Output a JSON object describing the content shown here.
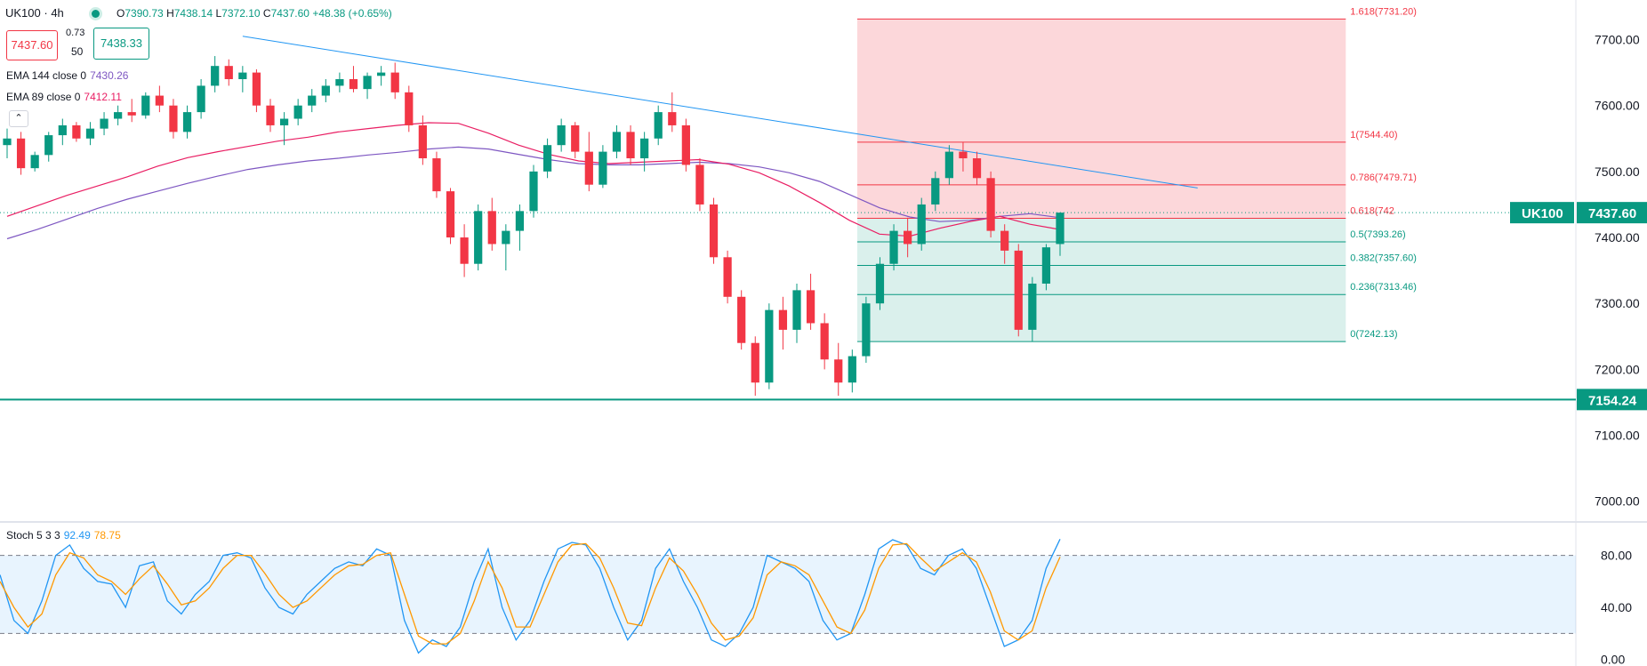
{
  "header": {
    "symbol": "UK100",
    "interval": "4h",
    "open_label": "O",
    "open": "7390.73",
    "high_label": "H",
    "high": "7438.14",
    "low_label": "L",
    "low": "7372.10",
    "close_label": "C",
    "close": "7437.60",
    "change": "+48.38 (+0.65%)"
  },
  "trade": {
    "bid": "7437.60",
    "ask": "7438.33",
    "spread": "0.73",
    "quantity": "50"
  },
  "indicators": {
    "ema144": {
      "label": "EMA 144 close 0",
      "value": "7430.26",
      "color": "#7e57c2"
    },
    "ema89": {
      "label": "EMA 89 close 0",
      "value": "7412.11",
      "color": "#e91e63"
    }
  },
  "stoch": {
    "label": "Stoch 5 3 3",
    "k": "92.49",
    "d": "78.75",
    "k_color": "#2196f3",
    "d_color": "#ff9800"
  },
  "colors": {
    "up": "#089981",
    "down": "#f23645",
    "trend": "#2196f3",
    "support": "#089981"
  },
  "chart_data": [
    {
      "type": "candlestick",
      "symbol": "UK100",
      "ylim": [
        6970,
        7760
      ],
      "yticks": [
        "7000.00",
        "7100.00",
        "7200.00",
        "7300.00",
        "7400.00",
        "7500.00",
        "7600.00",
        "7700.00"
      ],
      "last_price": 7437.6,
      "last_price_label": "UK100",
      "last_price_text": "7437.60",
      "support_level": 7154.24,
      "support_text": "7154.24",
      "trendline": [
        {
          "x": 0.154,
          "y": 7705
        },
        {
          "x": 0.76,
          "y": 7475
        }
      ],
      "fibonacci": [
        {
          "label": "1.618(7731.20)",
          "price": 7731.2
        },
        {
          "label": "1(7544.40)",
          "price": 7544.4
        },
        {
          "label": "0.786(7479.71)",
          "price": 7479.71
        },
        {
          "label": "0.618(742",
          "price": 7428.96
        },
        {
          "label": "0.5(7393.26)",
          "price": 7393.26
        },
        {
          "label": "0.382(7357.60)",
          "price": 7357.6
        },
        {
          "label": "0.236(7313.46)",
          "price": 7313.46
        },
        {
          "label": "0(7242.13)",
          "price": 7242.13
        }
      ],
      "fib_zone_x": [
        0.544,
        0.854
      ],
      "series": [
        {
          "name": "EMA 144 close 0",
          "values": [
            7398,
            7412,
            7428,
            7444,
            7458,
            7470,
            7482,
            7493,
            7503,
            7510,
            7516,
            7520,
            7525,
            7529,
            7534,
            7537,
            7534,
            7526,
            7518,
            7512,
            7510,
            7510,
            7512,
            7514,
            7512,
            7507,
            7498,
            7485,
            7465,
            7445,
            7431,
            7424,
            7426,
            7432,
            7436,
            7430
          ]
        },
        {
          "name": "EMA 89 close 0",
          "values": [
            7432,
            7448,
            7464,
            7478,
            7492,
            7508,
            7521,
            7530,
            7538,
            7546,
            7552,
            7560,
            7565,
            7570,
            7574,
            7573,
            7558,
            7540,
            7526,
            7516,
            7512,
            7514,
            7516,
            7518,
            7511,
            7498,
            7478,
            7453,
            7426,
            7405,
            7402,
            7414,
            7424,
            7432,
            7420,
            7412
          ]
        }
      ],
      "candles_ohlc": [
        [
          7540,
          7565,
          7520,
          7550
        ],
        [
          7550,
          7560,
          7495,
          7505
        ],
        [
          7505,
          7530,
          7500,
          7525
        ],
        [
          7525,
          7560,
          7515,
          7555
        ],
        [
          7555,
          7580,
          7540,
          7570
        ],
        [
          7570,
          7575,
          7545,
          7550
        ],
        [
          7550,
          7575,
          7540,
          7565
        ],
        [
          7565,
          7590,
          7555,
          7580
        ],
        [
          7580,
          7600,
          7570,
          7590
        ],
        [
          7590,
          7610,
          7575,
          7585
        ],
        [
          7585,
          7620,
          7580,
          7615
        ],
        [
          7615,
          7630,
          7590,
          7600
        ],
        [
          7600,
          7610,
          7550,
          7560
        ],
        [
          7560,
          7600,
          7550,
          7590
        ],
        [
          7590,
          7640,
          7580,
          7630
        ],
        [
          7630,
          7675,
          7620,
          7660
        ],
        [
          7660,
          7670,
          7630,
          7640
        ],
        [
          7640,
          7660,
          7620,
          7650
        ],
        [
          7650,
          7655,
          7590,
          7600
        ],
        [
          7600,
          7610,
          7560,
          7570
        ],
        [
          7570,
          7590,
          7540,
          7580
        ],
        [
          7580,
          7610,
          7570,
          7600
        ],
        [
          7600,
          7625,
          7590,
          7615
        ],
        [
          7615,
          7640,
          7605,
          7630
        ],
        [
          7630,
          7650,
          7620,
          7640
        ],
        [
          7640,
          7660,
          7620,
          7625
        ],
        [
          7625,
          7650,
          7610,
          7645
        ],
        [
          7645,
          7660,
          7630,
          7650
        ],
        [
          7650,
          7665,
          7610,
          7620
        ],
        [
          7620,
          7630,
          7560,
          7570
        ],
        [
          7570,
          7585,
          7510,
          7520
        ],
        [
          7520,
          7530,
          7460,
          7470
        ],
        [
          7470,
          7475,
          7390,
          7400
        ],
        [
          7400,
          7420,
          7340,
          7360
        ],
        [
          7360,
          7450,
          7350,
          7440
        ],
        [
          7440,
          7460,
          7380,
          7390
        ],
        [
          7390,
          7420,
          7350,
          7410
        ],
        [
          7410,
          7450,
          7380,
          7440
        ],
        [
          7440,
          7510,
          7430,
          7500
        ],
        [
          7500,
          7550,
          7490,
          7540
        ],
        [
          7540,
          7580,
          7530,
          7570
        ],
        [
          7570,
          7575,
          7520,
          7530
        ],
        [
          7530,
          7560,
          7470,
          7480
        ],
        [
          7480,
          7540,
          7475,
          7530
        ],
        [
          7530,
          7570,
          7520,
          7560
        ],
        [
          7560,
          7570,
          7510,
          7520
        ],
        [
          7520,
          7560,
          7500,
          7550
        ],
        [
          7550,
          7600,
          7540,
          7590
        ],
        [
          7590,
          7620,
          7560,
          7570
        ],
        [
          7570,
          7580,
          7500,
          7510
        ],
        [
          7510,
          7520,
          7440,
          7450
        ],
        [
          7450,
          7460,
          7360,
          7370
        ],
        [
          7370,
          7380,
          7300,
          7310
        ],
        [
          7310,
          7320,
          7230,
          7240
        ],
        [
          7240,
          7250,
          7160,
          7180
        ],
        [
          7180,
          7300,
          7170,
          7290
        ],
        [
          7290,
          7310,
          7230,
          7260
        ],
        [
          7260,
          7330,
          7240,
          7320
        ],
        [
          7320,
          7345,
          7260,
          7270
        ],
        [
          7270,
          7285,
          7200,
          7215
        ],
        [
          7215,
          7240,
          7160,
          7180
        ],
        [
          7180,
          7230,
          7165,
          7220
        ],
        [
          7220,
          7310,
          7210,
          7300
        ],
        [
          7300,
          7370,
          7290,
          7360
        ],
        [
          7360,
          7420,
          7350,
          7410
        ],
        [
          7410,
          7430,
          7370,
          7390
        ],
        [
          7390,
          7460,
          7380,
          7450
        ],
        [
          7450,
          7500,
          7440,
          7490
        ],
        [
          7490,
          7540,
          7480,
          7530
        ],
        [
          7530,
          7545,
          7500,
          7520
        ],
        [
          7520,
          7530,
          7480,
          7490
        ],
        [
          7490,
          7500,
          7400,
          7410
        ],
        [
          7410,
          7420,
          7360,
          7380
        ],
        [
          7380,
          7390,
          7250,
          7260
        ],
        [
          7260,
          7340,
          7242,
          7330
        ],
        [
          7330,
          7390,
          7320,
          7385
        ],
        [
          7390,
          7438,
          7372,
          7437.6
        ]
      ]
    },
    {
      "type": "line",
      "title": "Stoch 5 3 3",
      "ylim": [
        -5,
        105
      ],
      "yticks": [
        "0.00",
        "40.00",
        "80.00"
      ],
      "bands": [
        20,
        80
      ],
      "series": [
        {
          "name": "Stoch 5 3 3",
          "values": [
            65,
            30,
            20,
            45,
            80,
            88,
            70,
            60,
            58,
            40,
            72,
            75,
            45,
            35,
            50,
            60,
            80,
            82,
            78,
            55,
            40,
            35,
            50,
            60,
            70,
            75,
            72,
            85,
            80,
            30,
            5,
            15,
            10,
            25,
            60,
            85,
            40,
            15,
            30,
            60,
            85,
            90,
            88,
            70,
            40,
            15,
            30,
            70,
            85,
            60,
            40,
            15,
            10,
            20,
            40,
            80,
            75,
            70,
            60,
            30,
            15,
            20,
            50,
            85,
            92,
            88,
            70,
            65,
            80,
            85,
            70,
            40,
            10,
            15,
            30,
            70,
            92.49
          ]
        },
        {
          "name": "Stoch 5 3 3",
          "values": [
            60,
            40,
            25,
            35,
            65,
            82,
            78,
            65,
            60,
            50,
            62,
            72,
            58,
            42,
            45,
            55,
            70,
            80,
            80,
            66,
            50,
            40,
            45,
            55,
            65,
            72,
            73,
            80,
            82,
            50,
            18,
            12,
            12,
            20,
            45,
            75,
            55,
            25,
            25,
            50,
            75,
            88,
            89,
            78,
            55,
            28,
            26,
            55,
            78,
            68,
            50,
            28,
            15,
            18,
            32,
            65,
            75,
            72,
            65,
            45,
            25,
            20,
            38,
            70,
            88,
            89,
            78,
            68,
            75,
            82,
            75,
            52,
            22,
            15,
            22,
            55,
            78.75
          ]
        }
      ]
    }
  ]
}
